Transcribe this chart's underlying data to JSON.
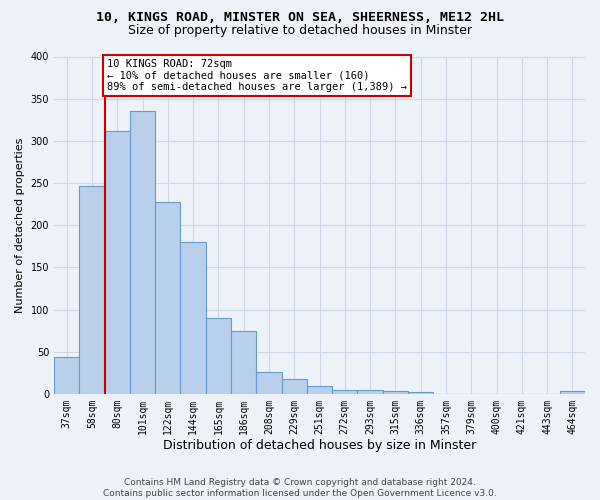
{
  "title1": "10, KINGS ROAD, MINSTER ON SEA, SHEERNESS, ME12 2HL",
  "title2": "Size of property relative to detached houses in Minster",
  "xlabel": "Distribution of detached houses by size in Minster",
  "ylabel": "Number of detached properties",
  "categories": [
    "37sqm",
    "58sqm",
    "80sqm",
    "101sqm",
    "122sqm",
    "144sqm",
    "165sqm",
    "186sqm",
    "208sqm",
    "229sqm",
    "251sqm",
    "272sqm",
    "293sqm",
    "315sqm",
    "336sqm",
    "357sqm",
    "379sqm",
    "400sqm",
    "421sqm",
    "443sqm",
    "464sqm"
  ],
  "values": [
    44,
    246,
    312,
    335,
    227,
    180,
    90,
    74,
    26,
    17,
    9,
    4,
    5,
    3,
    2,
    0,
    0,
    0,
    0,
    0,
    3
  ],
  "bar_color": "#b8d0eb",
  "bar_edge_color": "#6699cc",
  "vline_index": 1.5,
  "vline_color": "#cc0000",
  "annotation_line1": "10 KINGS ROAD: 72sqm",
  "annotation_line2": "← 10% of detached houses are smaller (160)",
  "annotation_line3": "89% of semi-detached houses are larger (1,389) →",
  "annotation_box_facecolor": "#ffffff",
  "annotation_box_edgecolor": "#cc0000",
  "ylim": [
    0,
    400
  ],
  "yticks": [
    0,
    50,
    100,
    150,
    200,
    250,
    300,
    350,
    400
  ],
  "footer1": "Contains HM Land Registry data © Crown copyright and database right 2024.",
  "footer2": "Contains public sector information licensed under the Open Government Licence v3.0.",
  "bg_color": "#edf1f8",
  "grid_color": "#d0d8e8",
  "title1_fontsize": 9.5,
  "title2_fontsize": 9,
  "xlabel_fontsize": 9,
  "ylabel_fontsize": 8,
  "tick_fontsize": 7,
  "annot_fontsize": 7.5,
  "footer_fontsize": 6.5
}
